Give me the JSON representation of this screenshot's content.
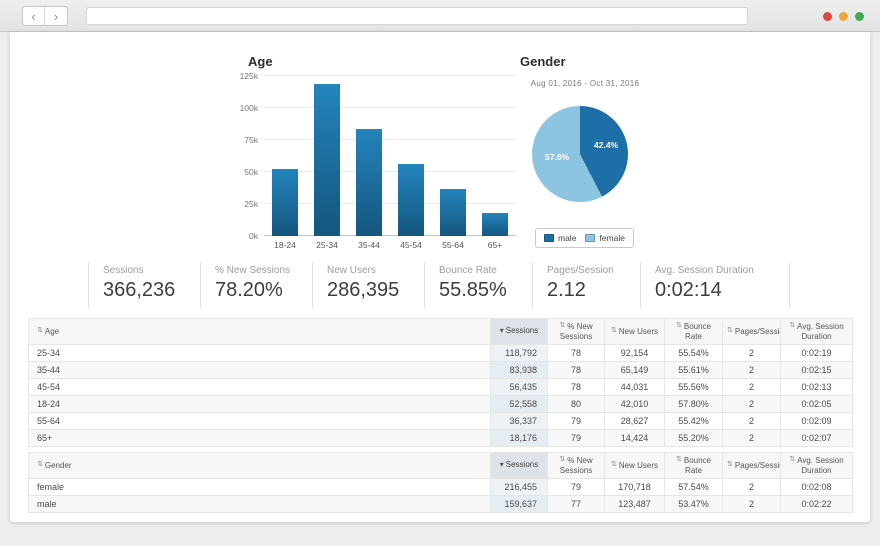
{
  "browser": {
    "back_label": "‹",
    "forward_label": "›",
    "url": ""
  },
  "age_section": {
    "title": "Age"
  },
  "gender_section": {
    "title": "Gender",
    "date_range": "Aug 01, 2016 - Oct 31, 2016",
    "male_pct_label": "42.4%",
    "female_pct_label": "57.6%",
    "legend": [
      {
        "label": "male",
        "color": "#1e6fa7"
      },
      {
        "label": "female",
        "color": "#8dc4e2"
      }
    ]
  },
  "chart_data": [
    {
      "type": "bar",
      "title": "Age",
      "categories": [
        "18-24",
        "25-34",
        "35-44",
        "45-54",
        "55-64",
        "65+"
      ],
      "values": [
        52558,
        118792,
        83938,
        56435,
        36337,
        18176
      ],
      "xlabel": "",
      "ylabel": "",
      "ylim": [
        0,
        125000
      ],
      "yticks": [
        "0k",
        "25k",
        "50k",
        "75k",
        "100k",
        "125k"
      ],
      "grid": true,
      "bar_color_top": "#2484bd",
      "bar_color_bottom": "#14567e"
    },
    {
      "type": "pie",
      "title": "Gender",
      "subtitle": "Aug 01, 2016 - Oct 31, 2016",
      "labels": [
        "male",
        "female"
      ],
      "values": [
        42.4,
        57.6
      ],
      "colors": [
        "#1e6fa7",
        "#8dc4e2"
      ],
      "legend_position": "bottom"
    }
  ],
  "stats": [
    {
      "label": "Sessions",
      "value": "366,236"
    },
    {
      "label": "% New Sessions",
      "value": "78.20%"
    },
    {
      "label": "New Users",
      "value": "286,395"
    },
    {
      "label": "Bounce Rate",
      "value": "55.85%"
    },
    {
      "label": "Pages/Session",
      "value": "2.12"
    },
    {
      "label": "Avg. Session Duration",
      "value": "0:02:14"
    }
  ],
  "tables": {
    "sort_icon_both": "⇅",
    "sort_icon_desc": "▾",
    "age_table": {
      "columns": [
        "Age",
        "Sessions",
        "% New Sessions",
        "New Users",
        "Bounce Rate",
        "Pages/Session",
        "Avg. Session Duration"
      ],
      "rows": [
        [
          "25-34",
          "118,792",
          "78",
          "92,154",
          "55.54%",
          "2",
          "0:02:19"
        ],
        [
          "35-44",
          "83,938",
          "78",
          "65,149",
          "55.61%",
          "2",
          "0:02:15"
        ],
        [
          "45-54",
          "56,435",
          "78",
          "44,031",
          "55.56%",
          "2",
          "0:02:13"
        ],
        [
          "18-24",
          "52,558",
          "80",
          "42,010",
          "57.80%",
          "2",
          "0:02:05"
        ],
        [
          "55-64",
          "36,337",
          "79",
          "28,627",
          "55.42%",
          "2",
          "0:02:09"
        ],
        [
          "65+",
          "18,176",
          "79",
          "14,424",
          "55.20%",
          "2",
          "0:02:07"
        ]
      ]
    },
    "gender_table": {
      "columns": [
        "Gender",
        "Sessions",
        "% New Sessions",
        "New Users",
        "Bounce Rate",
        "Pages/Session",
        "Avg. Session Duration"
      ],
      "rows": [
        [
          "female",
          "216,455",
          "79",
          "170,718",
          "57.54%",
          "2",
          "0:02:08"
        ],
        [
          "male",
          "159,637",
          "77",
          "123,487",
          "53.47%",
          "2",
          "0:02:22"
        ]
      ]
    }
  }
}
